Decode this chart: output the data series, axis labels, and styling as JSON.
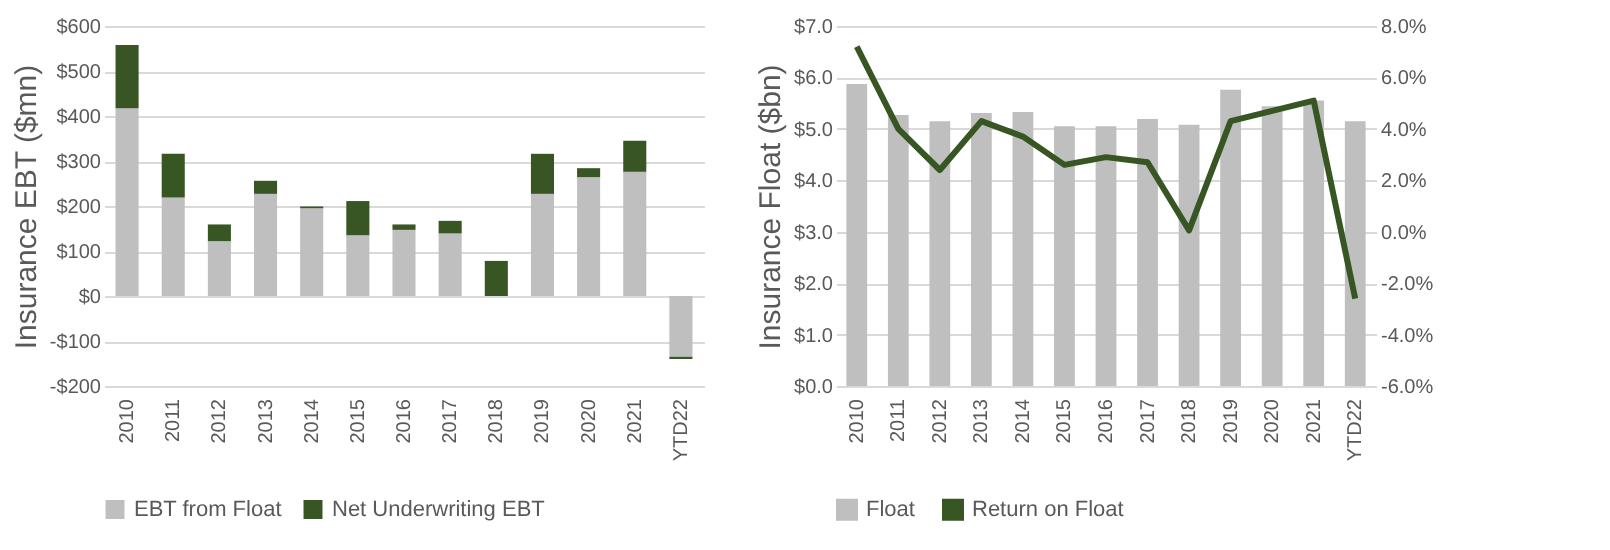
{
  "chart_data": [
    {
      "type": "bar",
      "stacked": true,
      "ylabel": "Insurance EBT ($mn)",
      "categories": [
        "2010",
        "2011",
        "2012",
        "2013",
        "2014",
        "2015",
        "2016",
        "2017",
        "2018",
        "2019",
        "2020",
        "2021",
        "YTD22"
      ],
      "series": [
        {
          "name": "EBT from Float",
          "color": "#bfbfbf",
          "values": [
            417,
            219,
            122,
            227,
            195,
            135,
            147,
            139,
            0,
            227,
            264,
            276,
            -135
          ]
        },
        {
          "name": "Net Underwriting EBT",
          "color": "#375623",
          "values": [
            141,
            97,
            37,
            29,
            4,
            76,
            12,
            28,
            78,
            89,
            20,
            69,
            -5
          ]
        }
      ],
      "ylim": [
        -200,
        600
      ],
      "yticks": [
        {
          "value": -200,
          "label": "-$200"
        },
        {
          "value": -100,
          "label": "-$100"
        },
        {
          "value": 0,
          "label": "$0"
        },
        {
          "value": 100,
          "label": "$100"
        },
        {
          "value": 200,
          "label": "$200"
        },
        {
          "value": 300,
          "label": "$300"
        },
        {
          "value": 400,
          "label": "$400"
        },
        {
          "value": 500,
          "label": "$500"
        },
        {
          "value": 600,
          "label": "$600"
        }
      ],
      "grid": "y",
      "legend": "bottom"
    },
    {
      "type": "bar",
      "ylabel": "Insurance Float ($bn)",
      "categories": [
        "2010",
        "2011",
        "2012",
        "2013",
        "2014",
        "2015",
        "2016",
        "2017",
        "2018",
        "2019",
        "2020",
        "2021",
        "YTD22"
      ],
      "series": [
        {
          "name": "Float",
          "color": "#bfbfbf",
          "values": [
            5.87,
            5.27,
            5.15,
            5.31,
            5.33,
            5.05,
            5.05,
            5.19,
            5.08,
            5.76,
            5.44,
            5.55,
            5.15
          ]
        },
        {
          "name": "Return on Float",
          "type": "line",
          "axis": "y2",
          "color": "#375623",
          "values": [
            7.2,
            4.0,
            2.4,
            4.3,
            3.7,
            2.6,
            2.9,
            2.7,
            0.05,
            4.3,
            4.7,
            5.1,
            -2.6
          ]
        }
      ],
      "ylim": [
        0,
        7
      ],
      "yticks": [
        {
          "value": 0,
          "label": "$0.0"
        },
        {
          "value": 1,
          "label": "$1.0"
        },
        {
          "value": 2,
          "label": "$2.0"
        },
        {
          "value": 3,
          "label": "$3.0"
        },
        {
          "value": 4,
          "label": "$4.0"
        },
        {
          "value": 5,
          "label": "$5.0"
        },
        {
          "value": 6,
          "label": "$6.0"
        },
        {
          "value": 7,
          "label": "$7.0"
        }
      ],
      "y2lim": [
        -6,
        8
      ],
      "y2ticks": [
        {
          "value": -6,
          "label": "-6.0%"
        },
        {
          "value": -4,
          "label": "-4.0%"
        },
        {
          "value": -2,
          "label": "-2.0%"
        },
        {
          "value": 0,
          "label": "0.0%"
        },
        {
          "value": 2,
          "label": "2.0%"
        },
        {
          "value": 4,
          "label": "4.0%"
        },
        {
          "value": 6,
          "label": "6.0%"
        },
        {
          "value": 8,
          "label": "8.0%"
        }
      ],
      "grid": "y",
      "legend": "bottom",
      "line_style": "solid",
      "marker": "none"
    }
  ]
}
